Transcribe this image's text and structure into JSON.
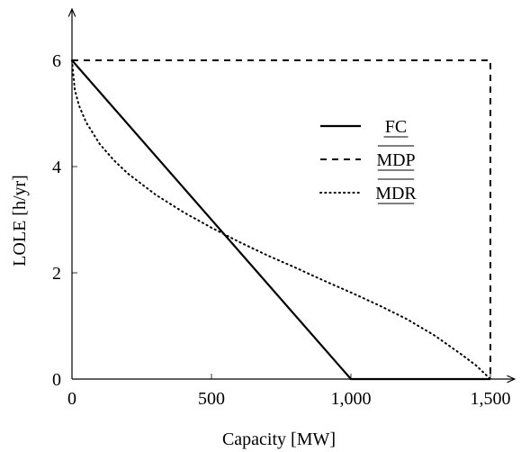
{
  "chart_data": {
    "type": "line",
    "title": "",
    "xlabel": "Capacity [MW]",
    "ylabel": "LOLE [h/yr]",
    "xlim": [
      0,
      1500
    ],
    "ylim": [
      0,
      6
    ],
    "x_ticks": [
      {
        "value": 0,
        "label": "0"
      },
      {
        "value": 500,
        "label": "500"
      },
      {
        "value": 1000,
        "label": "1,000"
      },
      {
        "value": 1500,
        "label": "1,500"
      }
    ],
    "y_ticks": [
      {
        "value": 0,
        "label": "0"
      },
      {
        "value": 2,
        "label": "2"
      },
      {
        "value": 4,
        "label": "4"
      },
      {
        "value": 6,
        "label": "6"
      }
    ],
    "grid": false,
    "legend_position": "top-right",
    "series": [
      {
        "name": "FC",
        "style": "solid",
        "points": [
          [
            0,
            6
          ],
          [
            1000,
            0
          ],
          [
            1500,
            0
          ]
        ]
      },
      {
        "name": "MDP",
        "style": "dashed",
        "points": [
          [
            0,
            6
          ],
          [
            1500,
            6
          ],
          [
            1500,
            0
          ]
        ]
      },
      {
        "name": "MDR",
        "style": "dotted",
        "points": [
          [
            0,
            6
          ],
          [
            10,
            5.45
          ],
          [
            25,
            5.15
          ],
          [
            50,
            4.84
          ],
          [
            100,
            4.42
          ],
          [
            150,
            4.12
          ],
          [
            200,
            3.87
          ],
          [
            300,
            3.47
          ],
          [
            400,
            3.14
          ],
          [
            500,
            2.85
          ],
          [
            600,
            2.58
          ],
          [
            700,
            2.33
          ],
          [
            800,
            2.1
          ],
          [
            900,
            1.86
          ],
          [
            1000,
            1.63
          ],
          [
            1100,
            1.39
          ],
          [
            1200,
            1.13
          ],
          [
            1300,
            0.82
          ],
          [
            1400,
            0.45
          ],
          [
            1450,
            0.25
          ],
          [
            1500,
            0
          ]
        ]
      }
    ]
  }
}
